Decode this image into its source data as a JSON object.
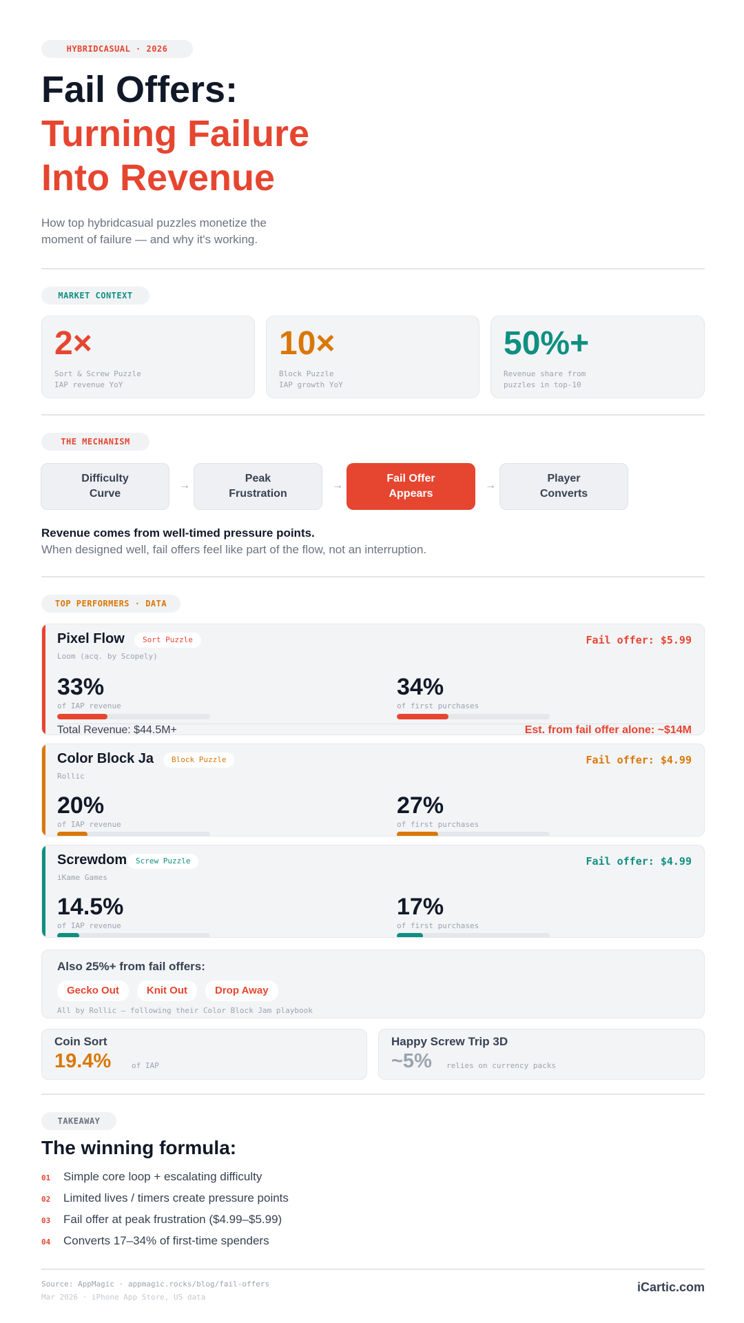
{
  "hero": {
    "tag": "HYBRIDCASUAL · 2026",
    "title_line1": "Fail Offers:",
    "title_line2": "Turning Failure",
    "title_line3": "Into Revenue",
    "subtitle_line1": "How top hybridcasual puzzles monetize the",
    "subtitle_line2": "moment of failure — and why it's working."
  },
  "market": {
    "tag": "MARKET CONTEXT",
    "cards": [
      {
        "value": "2×",
        "desc": "Sort & Screw Puzzle\nIAP revenue YoY",
        "color": "#e64530"
      },
      {
        "value": "10×",
        "desc": "Block Puzzle\nIAP growth YoY",
        "color": "#d97706"
      },
      {
        "value": "50%+",
        "desc": "Revenue share from\npuzzles in top-10",
        "color": "#0f8f80"
      }
    ]
  },
  "mechanism": {
    "tag": "THE MECHANISM",
    "steps": [
      "Difficulty\nCurve",
      "Peak\nFrustration",
      "Fail Offer\nAppears",
      "Player\nConverts"
    ],
    "arrow": "→",
    "headline": "Revenue comes from well-timed pressure points.",
    "body": "When designed well, fail offers feel like part of the flow, not an interruption."
  },
  "performers": {
    "tag": "TOP PERFORMERS · DATA",
    "games": [
      {
        "name": "Pixel Flow",
        "genre": "Sort Puzzle",
        "company": "Loom (acq. by Scopely)",
        "offer": "Fail offer: $5.99",
        "color": "#e64530",
        "stat1": {
          "value": "33%",
          "label": "of IAP revenue",
          "fraction": 0.33
        },
        "stat2": {
          "value": "34%",
          "label": "of first purchases",
          "fraction": 0.34
        },
        "total": "Total Revenue: $44.5M+",
        "estimate": "Est. from fail offer alone: ~$14M"
      },
      {
        "name": "Color Block Ja",
        "genre": "Block Puzzle",
        "company": "Rollic",
        "offer": "Fail offer: $4.99",
        "color": "#d97706",
        "stat1": {
          "value": "20%",
          "label": "of IAP revenue",
          "fraction": 0.2
        },
        "stat2": {
          "value": "27%",
          "label": "of first purchases",
          "fraction": 0.27
        }
      },
      {
        "name": "Screwdom",
        "genre": "Screw Puzzle",
        "company": "iKame Games",
        "offer": "Fail offer: $4.99",
        "color": "#0f8f80",
        "stat1": {
          "value": "14.5%",
          "label": "of IAP revenue",
          "fraction": 0.145
        },
        "stat2": {
          "value": "17%",
          "label": "of first purchases",
          "fraction": 0.17
        }
      }
    ]
  },
  "also": {
    "title": "Also 25%+ from fail offers:",
    "games": [
      "Gecko Out",
      "Knit Out",
      "Drop Away"
    ],
    "note": "All by Rollic — following their Color Block Jam playbook"
  },
  "mini": [
    {
      "name": "Coin Sort",
      "value": "19.4%",
      "label": "of IAP",
      "color": "#d97706"
    },
    {
      "name": "Happy Screw Trip 3D",
      "value": "~5%",
      "label": "relies on currency packs",
      "color": "#9ca3af"
    }
  ],
  "takeaway": {
    "tag": "TAKEAWAY",
    "title": "The winning formula:",
    "items": [
      {
        "n": "01",
        "text": "Simple core loop + escalating difficulty"
      },
      {
        "n": "02",
        "text": "Limited lives / timers create pressure points"
      },
      {
        "n": "03",
        "text": "Fail offer at peak frustration ($4.99–$5.99)"
      },
      {
        "n": "04",
        "text": "Converts 17–34% of first-time spenders"
      }
    ]
  },
  "footer": {
    "source": "Source: AppMagic · appmagic.rocks/blog/fail-offers",
    "date": "Mar 2026 · iPhone App Store, US data",
    "brand": "iCartic.com"
  }
}
